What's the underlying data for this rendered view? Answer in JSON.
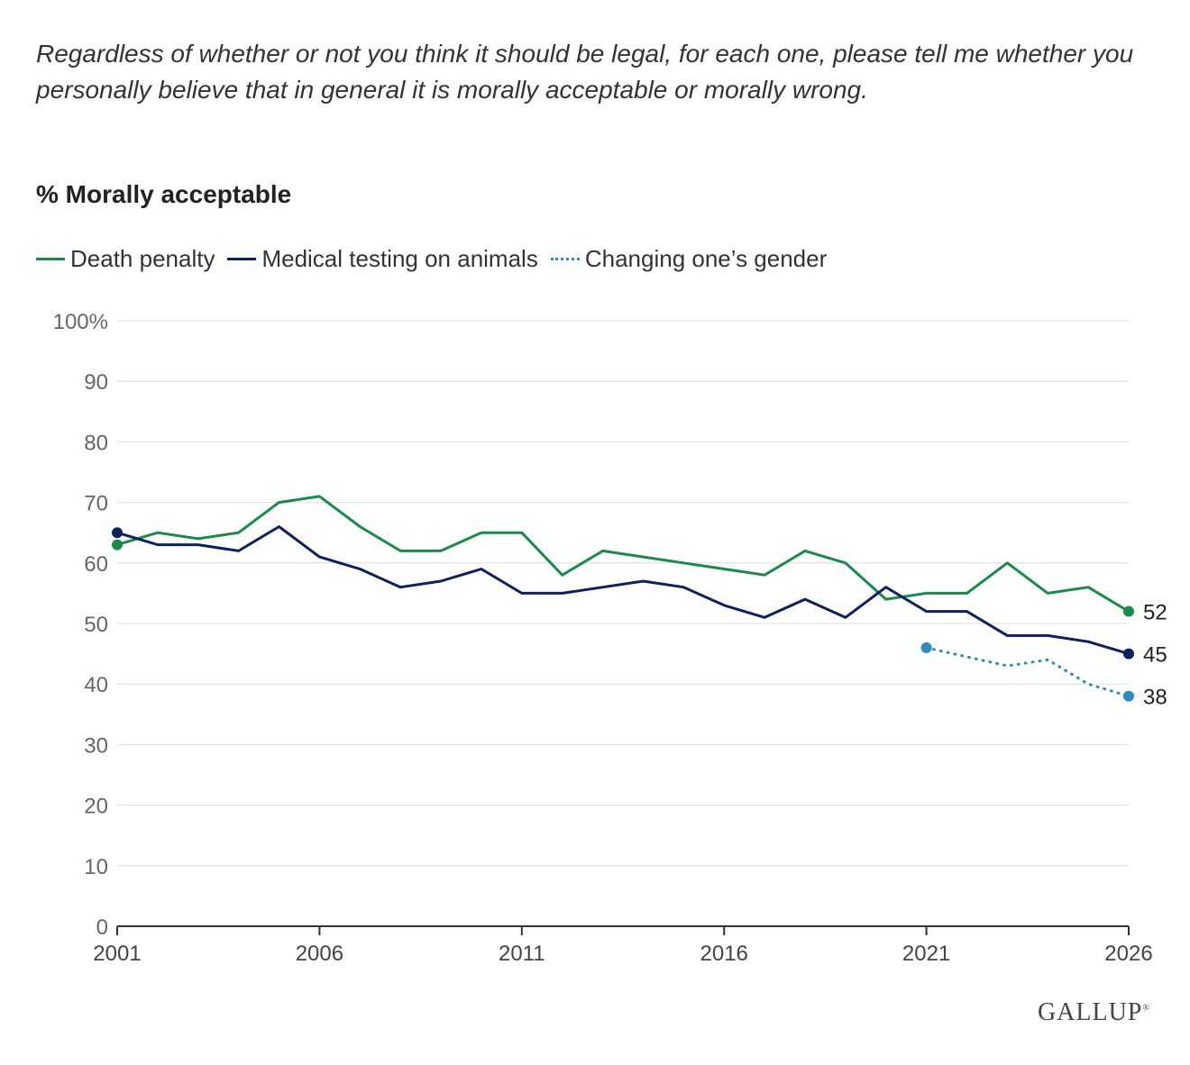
{
  "question": "Regardless of whether or not you think it should be legal, for each one, please tell me whether you personally believe that in general it is morally acceptable or morally wrong.",
  "logo_text": "GALLUP",
  "colors": {
    "death_penalty": "#1a8a4a",
    "animal_testing": "#0d2160",
    "gender": "#2e8bc0",
    "grid": "#dddddd",
    "axis": "#333333",
    "tick_text": "#666666"
  },
  "chart_data": {
    "type": "line",
    "title": "% Morally acceptable",
    "xlabel": "",
    "ylabel": "",
    "xlim": [
      2001,
      2026
    ],
    "ylim": [
      0,
      100
    ],
    "x_ticks": [
      2001,
      2006,
      2011,
      2016,
      2021,
      2026
    ],
    "y_ticks": [
      {
        "value": 0,
        "label": "0"
      },
      {
        "value": 10,
        "label": "10"
      },
      {
        "value": 20,
        "label": "20"
      },
      {
        "value": 30,
        "label": "30"
      },
      {
        "value": 40,
        "label": "40"
      },
      {
        "value": 50,
        "label": "50"
      },
      {
        "value": 60,
        "label": "60"
      },
      {
        "value": 70,
        "label": "70"
      },
      {
        "value": 80,
        "label": "80"
      },
      {
        "value": 90,
        "label": "90"
      },
      {
        "value": 100,
        "label": "100%"
      }
    ],
    "grid": true,
    "legend_position": "top-left",
    "series": [
      {
        "name": "Death penalty",
        "style": "solid",
        "color": "#1a8a4a",
        "x": [
          2001,
          2002,
          2003,
          2004,
          2005,
          2006,
          2007,
          2008,
          2009,
          2010,
          2011,
          2012,
          2013,
          2014,
          2015,
          2016,
          2017,
          2018,
          2019,
          2020,
          2021,
          2022,
          2023,
          2024,
          2025,
          2026
        ],
        "y": [
          63,
          65,
          64,
          65,
          70,
          71,
          66,
          62,
          62,
          65,
          65,
          58,
          62,
          61,
          60,
          59,
          58,
          62,
          60,
          54,
          55,
          55,
          60,
          55,
          56,
          52
        ],
        "end_label": "52"
      },
      {
        "name": "Medical testing on animals",
        "style": "solid",
        "color": "#0d2160",
        "x": [
          2001,
          2002,
          2003,
          2004,
          2005,
          2006,
          2007,
          2008,
          2009,
          2010,
          2011,
          2012,
          2013,
          2014,
          2015,
          2016,
          2017,
          2018,
          2019,
          2020,
          2021,
          2022,
          2023,
          2024,
          2025,
          2026
        ],
        "y": [
          65,
          63,
          63,
          62,
          66,
          61,
          59,
          56,
          57,
          59,
          55,
          55,
          56,
          57,
          56,
          53,
          51,
          54,
          51,
          56,
          52,
          52,
          48,
          48,
          47,
          45
        ],
        "end_label": "45"
      },
      {
        "name": "Changing one’s gender",
        "style": "dotted",
        "color": "#2e8bc0",
        "x": [
          2021,
          2022,
          2023,
          2024,
          2025,
          2026
        ],
        "y": [
          46,
          44.5,
          43,
          44,
          40,
          38
        ],
        "end_label": "38"
      }
    ]
  }
}
